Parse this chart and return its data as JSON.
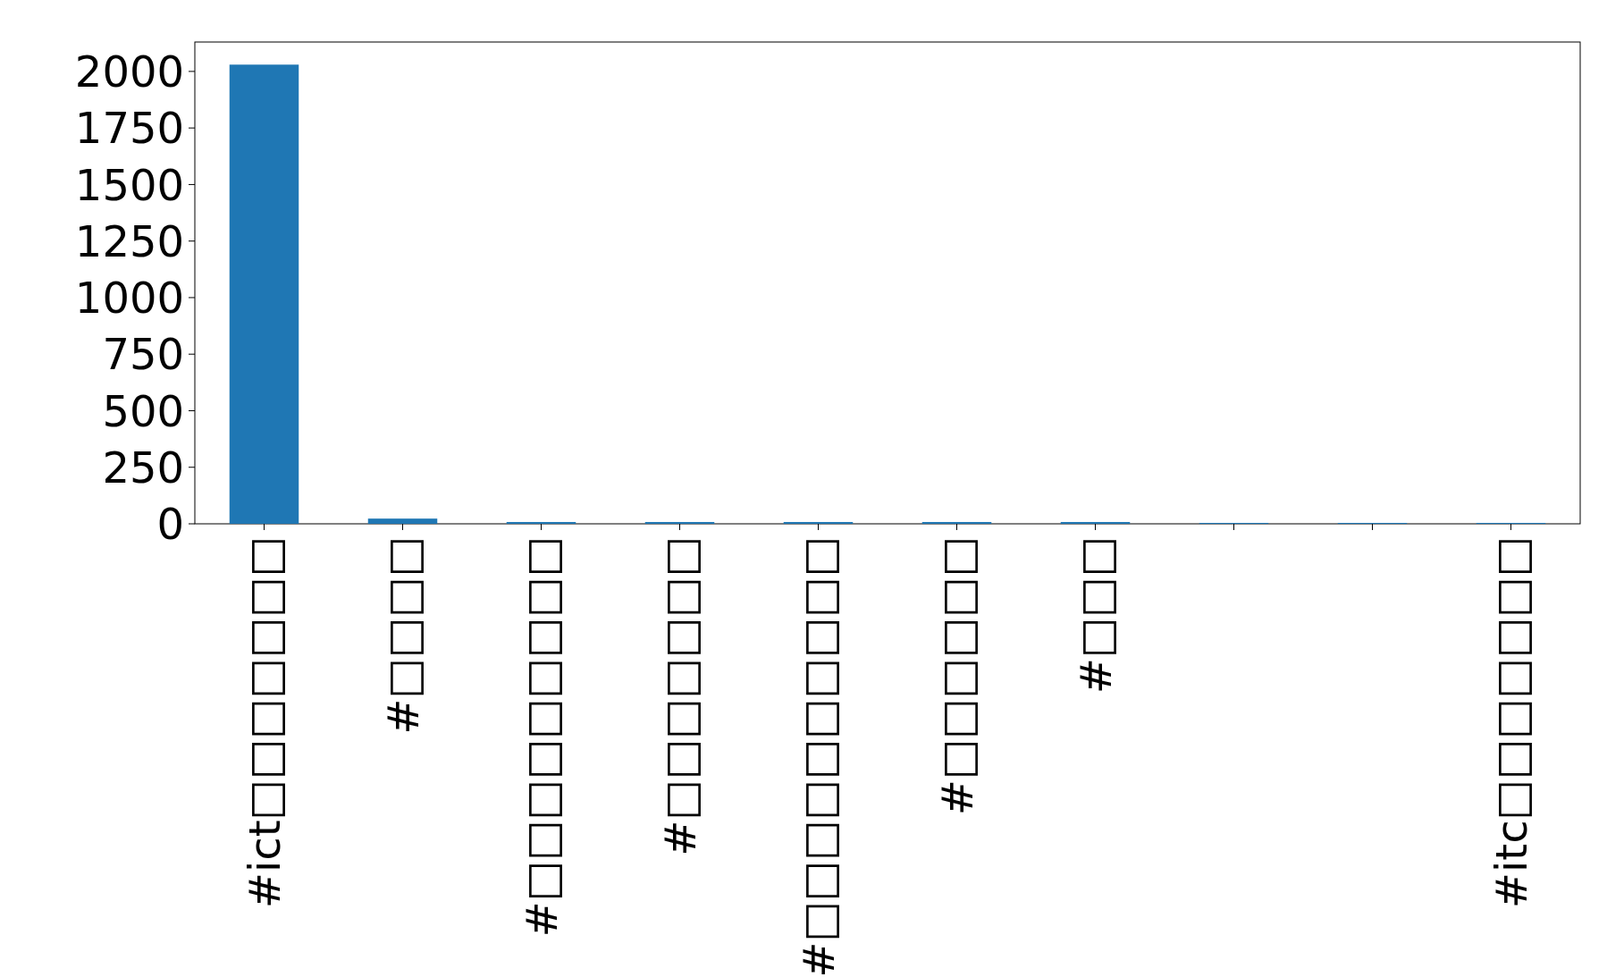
{
  "chart_data": {
    "type": "bar",
    "categories": [
      "#ict□□□□□□□",
      "#□□□□",
      "#□□□□□□□□□",
      "#□□□□□□□",
      "#□□□□□□□□□□",
      "#□□□□□□",
      "#□□□",
      null,
      null,
      "#itc□□□□□□□"
    ],
    "values": [
      2030,
      23,
      8,
      8,
      8,
      8,
      8,
      4,
      4,
      4
    ],
    "color": "#1f77b4",
    "ylim": [
      0,
      2130
    ],
    "yticks": [
      0,
      250,
      500,
      750,
      1000,
      1250,
      1500,
      1750,
      2000
    ],
    "grid": false
  }
}
